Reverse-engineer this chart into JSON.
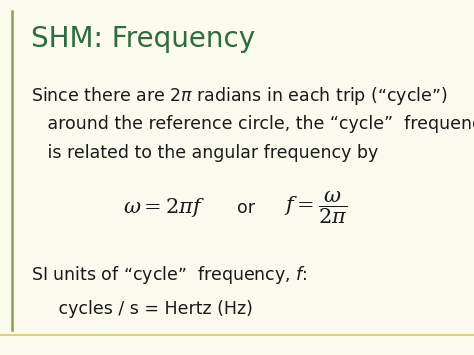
{
  "title": "SHM: Frequency",
  "title_color": "#2E6B3E",
  "title_fontsize": 20,
  "background_color": "#FAFAED",
  "border_color_left": "#8B9E5A",
  "border_color_bottom": "#D4C870",
  "body_text_color": "#1a1a1a",
  "body_fontsize": 12.5,
  "body_line1": "Since there are $2\\pi$ radians in each trip (“cycle”)",
  "body_line2": "   around the reference circle, the “cycle”  frequency",
  "body_line3": "   is related to the angular frequency by",
  "formula1": "$\\omega = 2\\pi f$",
  "formula_or": "or",
  "formula2": "$f = \\dfrac{\\omega}{2\\pi}$",
  "si_line1": "SI units of “cycle”  frequency, $f$:",
  "si_line2": "     cycles / s = Hertz (Hz)",
  "formula_fontsize": 15,
  "si_fontsize": 12.5
}
